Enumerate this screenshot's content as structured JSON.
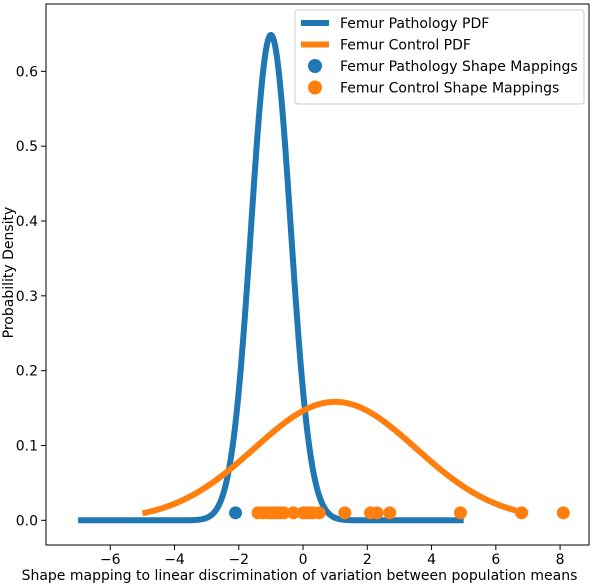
{
  "chart_data": {
    "type": "line",
    "xlabel": "Shape mapping to linear discrimination of variation between population means",
    "ylabel": "Probability Density",
    "xlim": [
      -8.0,
      8.9
    ],
    "ylim": [
      -0.033,
      0.69
    ],
    "x_ticks": [
      -6,
      -4,
      -2,
      0,
      2,
      4,
      6,
      8
    ],
    "x_tick_labels": [
      "−6",
      "−4",
      "−2",
      "0",
      "2",
      "4",
      "6",
      "8"
    ],
    "y_ticks": [
      0.0,
      0.1,
      0.2,
      0.3,
      0.4,
      0.5,
      0.6
    ],
    "y_tick_labels": [
      "0.0",
      "0.1",
      "0.2",
      "0.3",
      "0.4",
      "0.5",
      "0.6"
    ],
    "grid": false,
    "legend_position": "top-right",
    "colors": {
      "pathology": "#1f77b4",
      "control": "#ff7f0e"
    },
    "series": [
      {
        "name": "Femur Pathology PDF",
        "kind": "line",
        "color": "#1f77b4",
        "mean": -1.0,
        "std": 0.615,
        "x_range": [
          -7.0,
          5.0
        ]
      },
      {
        "name": "Femur Control PDF",
        "kind": "line",
        "color": "#ff7f0e",
        "mean": 1.0,
        "std": 2.52,
        "x_range": [
          -5.0,
          7.0
        ]
      },
      {
        "name": "Femur Pathology Shape Mappings",
        "kind": "scatter",
        "color": "#1f77b4",
        "x": [
          -2.1
        ],
        "y": [
          0.01
        ]
      },
      {
        "name": "Femur Control Shape Mappings",
        "kind": "scatter",
        "color": "#ff7f0e",
        "x": [
          -1.4,
          -1.25,
          -1.1,
          -1.0,
          -0.9,
          -0.8,
          -0.7,
          -0.6,
          -0.3,
          0.0,
          0.1,
          0.2,
          0.3,
          0.5,
          1.3,
          2.1,
          2.3,
          2.7,
          4.9,
          6.8,
          8.1
        ],
        "y": [
          0.01,
          0.01,
          0.01,
          0.01,
          0.01,
          0.01,
          0.01,
          0.01,
          0.01,
          0.01,
          0.01,
          0.01,
          0.01,
          0.01,
          0.01,
          0.01,
          0.01,
          0.01,
          0.01,
          0.01,
          0.01
        ]
      }
    ]
  }
}
